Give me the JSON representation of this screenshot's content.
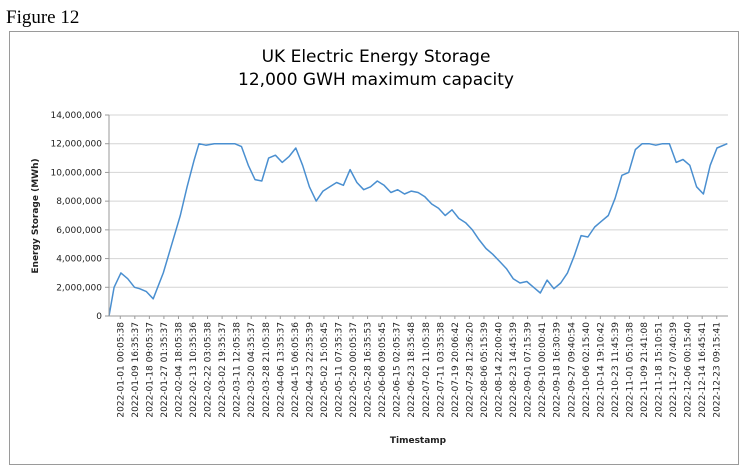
{
  "figure_label": "Figure 12",
  "chart_data": {
    "type": "line",
    "title_lines": [
      "UK Electric Energy Storage",
      "12,000 GWH maximum capacity"
    ],
    "xlabel": "Timestamp",
    "ylabel": "Energy Storage (MWh)",
    "ylim": [
      0,
      14000000
    ],
    "yticks": [
      0,
      2000000,
      4000000,
      6000000,
      8000000,
      10000000,
      12000000,
      14000000
    ],
    "ytick_labels": [
      "0",
      "2,000,000",
      "4,000,000",
      "6,000,000",
      "8,000,000",
      "10,000,000",
      "12,000,000",
      "14,000,000"
    ],
    "xtick_labels": [
      "2022-01-01 00:05:38",
      "2022-01-09 16:35:37",
      "2022-01-18 09:05:37",
      "2022-01-27 01:35:37",
      "2022-02-04 18:05:38",
      "2022-02-13 10:35:36",
      "2022-02-22 03:05:38",
      "2022-03-02 19:35:37",
      "2022-03-11 12:05:38",
      "2022-03-20 04:35:37",
      "2022-03-28 21:05:38",
      "2022-04-06 13:35:37",
      "2022-04-15 06:05:36",
      "2022-04-23 22:35:39",
      "2022-05-02 15:05:45",
      "2022-05-11 07:35:37",
      "2022-05-20 00:05:37",
      "2022-05-28 16:35:53",
      "2022-06-06 09:05:45",
      "2022-06-15 02:05:37",
      "2022-06-23 18:35:48",
      "2022-07-02 11:05:38",
      "2022-07-11 03:35:38",
      "2022-07-19 20:06:42",
      "2022-07-28 12:36:20",
      "2022-08-06 05:15:39",
      "2022-08-14 22:00:40",
      "2022-08-23 14:45:39",
      "2022-09-01 07:15:39",
      "2022-09-10 00:00:41",
      "2022-09-18 16:30:39",
      "2022-09-27 09:40:54",
      "2022-10-06 02:15:40",
      "2022-10-14 19:10:42",
      "2022-10-23 11:45:39",
      "2022-11-01 05:10:38",
      "2022-11-09 21:41:08",
      "2022-11-18 15:10:51",
      "2022-11-27 07:40:39",
      "2022-12-06 00:15:40",
      "2022-12-14 16:45:41",
      "2022-12-23 09:15:41"
    ],
    "series": [
      {
        "color": "#4a8fd0",
        "x": [
          "2022-01-01",
          "2022-01-04",
          "2022-01-08",
          "2022-01-12",
          "2022-01-16",
          "2022-01-19",
          "2022-01-23",
          "2022-01-27",
          "2022-02-02",
          "2022-02-07",
          "2022-02-12",
          "2022-02-16",
          "2022-02-20",
          "2022-02-23",
          "2022-02-27",
          "2022-03-04",
          "2022-03-08",
          "2022-03-12",
          "2022-03-16",
          "2022-03-20",
          "2022-03-24",
          "2022-03-28",
          "2022-04-01",
          "2022-04-05",
          "2022-04-09",
          "2022-04-13",
          "2022-04-17",
          "2022-04-21",
          "2022-04-25",
          "2022-04-29",
          "2022-05-03",
          "2022-05-07",
          "2022-05-11",
          "2022-05-15",
          "2022-05-19",
          "2022-05-23",
          "2022-05-27",
          "2022-05-31",
          "2022-06-04",
          "2022-06-08",
          "2022-06-12",
          "2022-06-16",
          "2022-06-20",
          "2022-06-24",
          "2022-06-28",
          "2022-07-02",
          "2022-07-06",
          "2022-07-10",
          "2022-07-14",
          "2022-07-18",
          "2022-07-22",
          "2022-07-26",
          "2022-07-30",
          "2022-08-03",
          "2022-08-07",
          "2022-08-11",
          "2022-08-15",
          "2022-08-19",
          "2022-08-23",
          "2022-08-27",
          "2022-08-31",
          "2022-09-04",
          "2022-09-08",
          "2022-09-12",
          "2022-09-16",
          "2022-09-20",
          "2022-09-24",
          "2022-09-28",
          "2022-10-02",
          "2022-10-06",
          "2022-10-10",
          "2022-10-14",
          "2022-10-18",
          "2022-10-22",
          "2022-10-26",
          "2022-10-30",
          "2022-11-03",
          "2022-11-07",
          "2022-11-11",
          "2022-11-15",
          "2022-11-19",
          "2022-11-23",
          "2022-11-27",
          "2022-12-01",
          "2022-12-05",
          "2022-12-09",
          "2022-12-13",
          "2022-12-17",
          "2022-12-21",
          "2022-12-25",
          "2022-12-31"
        ],
        "values": [
          0,
          2000000,
          3000000,
          2600000,
          2000000,
          1900000,
          1700000,
          1200000,
          3000000,
          5000000,
          7000000,
          9000000,
          10800000,
          12000000,
          11900000,
          12000000,
          12000000,
          12000000,
          12000000,
          11800000,
          10500000,
          9500000,
          9400000,
          11000000,
          11200000,
          10700000,
          11100000,
          11700000,
          10500000,
          9000000,
          8000000,
          8700000,
          9000000,
          9300000,
          9100000,
          10200000,
          9300000,
          8800000,
          9000000,
          9400000,
          9100000,
          8600000,
          8800000,
          8500000,
          8700000,
          8600000,
          8300000,
          7800000,
          7500000,
          7000000,
          7400000,
          6800000,
          6500000,
          6000000,
          5300000,
          4700000,
          4300000,
          3800000,
          3300000,
          2600000,
          2300000,
          2400000,
          2000000,
          1600000,
          2500000,
          1900000,
          2300000,
          3000000,
          4200000,
          5600000,
          5500000,
          6200000,
          6600000,
          7000000,
          8200000,
          9800000,
          10000000,
          11600000,
          12000000,
          12000000,
          11900000,
          12000000,
          12000000,
          10700000,
          10900000,
          10500000,
          9000000,
          8500000,
          10500000,
          11700000,
          12000000
        ]
      }
    ]
  }
}
